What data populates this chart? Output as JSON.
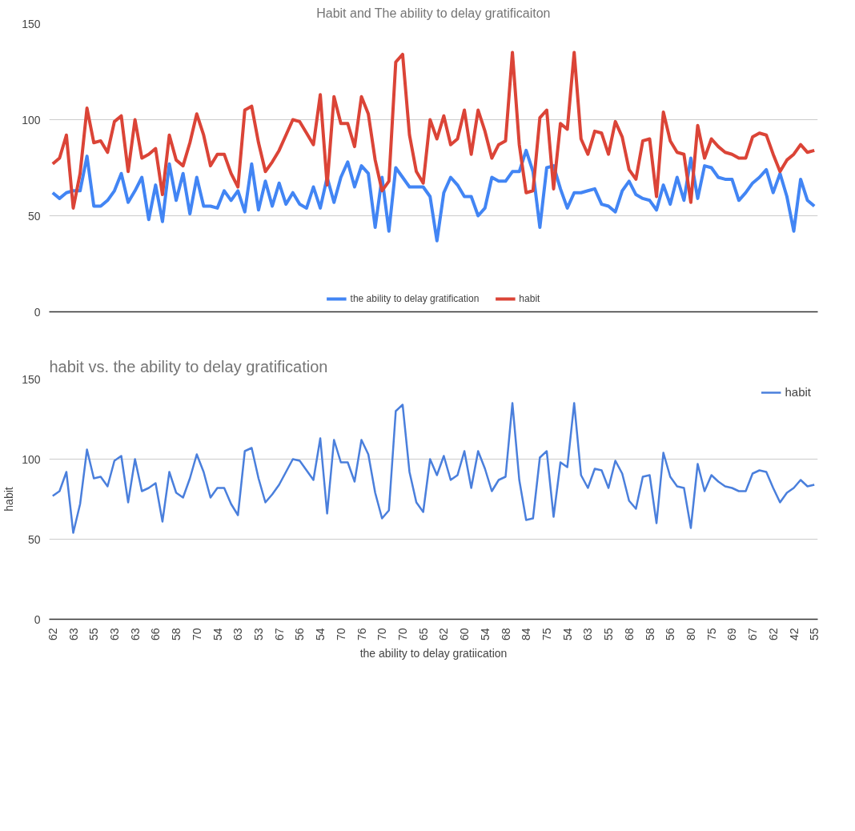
{
  "chart_data": [
    {
      "type": "line",
      "title": "Habit and The ability to delay gratificaiton",
      "categories": [
        null,
        null,
        null,
        null,
        null,
        null,
        null,
        null,
        null,
        null,
        null,
        null,
        null,
        null,
        null,
        null,
        null,
        null,
        null,
        null,
        null,
        null,
        null,
        null,
        null,
        null,
        null,
        null,
        null,
        null,
        null,
        null,
        null,
        null,
        null,
        null,
        null,
        null,
        null,
        null,
        null,
        null,
        null,
        null,
        null,
        null,
        null,
        null,
        null,
        null,
        null,
        null,
        null,
        null,
        null,
        null,
        null,
        null,
        null,
        null,
        null,
        null,
        null,
        null,
        null,
        null,
        null,
        null,
        null,
        null,
        null,
        null,
        null,
        null,
        null,
        null,
        null,
        null,
        null,
        null,
        null,
        null,
        null,
        null,
        null,
        null,
        null,
        null,
        null,
        null,
        null,
        null,
        null,
        null,
        null,
        null,
        null,
        null,
        null,
        null,
        null,
        null,
        null,
        null,
        null,
        null,
        null,
        null,
        null,
        null,
        null,
        null
      ],
      "series": [
        {
          "name": "the ability to delay gratification",
          "color": "#4285f4",
          "values": [
            62,
            59,
            62,
            63,
            63,
            81,
            55,
            55,
            58,
            63,
            72,
            57,
            63,
            70,
            48,
            66,
            47,
            77,
            58,
            72,
            51,
            70,
            55,
            55,
            54,
            63,
            58,
            63,
            52,
            77,
            53,
            68,
            55,
            67,
            56,
            62,
            56,
            54,
            65,
            54,
            70,
            57,
            70,
            78,
            65,
            76,
            72,
            44,
            70,
            42,
            75,
            70,
            65,
            65,
            65,
            60,
            37,
            62,
            70,
            66,
            60,
            60,
            50,
            54,
            70,
            68,
            68,
            73,
            73,
            84,
            73,
            44,
            75,
            76,
            64,
            54,
            62,
            62,
            63,
            64,
            56,
            55,
            52,
            63,
            68,
            61,
            59,
            58,
            53,
            66,
            56,
            70,
            58,
            80,
            59,
            76,
            75,
            70,
            69,
            69,
            58,
            62,
            67,
            70,
            74,
            62,
            72,
            60,
            42,
            69,
            58,
            55
          ]
        },
        {
          "name": "habit",
          "color": "#db4437",
          "values": [
            77,
            80,
            92,
            54,
            72,
            106,
            88,
            89,
            83,
            99,
            102,
            73,
            100,
            80,
            82,
            85,
            61,
            92,
            79,
            76,
            88,
            103,
            92,
            76,
            82,
            82,
            72,
            65,
            105,
            107,
            88,
            73,
            78,
            84,
            92,
            100,
            99,
            93,
            87,
            113,
            66,
            112,
            98,
            98,
            86,
            112,
            103,
            79,
            63,
            68,
            130,
            134,
            92,
            73,
            67,
            100,
            90,
            102,
            87,
            90,
            105,
            82,
            105,
            94,
            80,
            87,
            89,
            135,
            87,
            62,
            63,
            101,
            105,
            64,
            98,
            95,
            135,
            90,
            82,
            94,
            93,
            82,
            99,
            91,
            74,
            69,
            89,
            90,
            60,
            104,
            89,
            83,
            82,
            57,
            97,
            80,
            90,
            86,
            83,
            82,
            80,
            80,
            91,
            93,
            92,
            82,
            73,
            79,
            82,
            87,
            83,
            84
          ]
        }
      ],
      "ylim": [
        0,
        150
      ],
      "yticks": [
        0,
        50,
        100,
        150
      ],
      "grid": "y",
      "legend": "bottom",
      "tick_labels": "y",
      "line_style": "solid"
    },
    {
      "type": "line",
      "title": "habit vs. the ability to delay gratification",
      "xlabel": "the ability to delay gratiication",
      "ylabel": "habit",
      "categories": [
        "62",
        null,
        null,
        "63",
        null,
        null,
        "55",
        null,
        null,
        "63",
        null,
        null,
        "63",
        null,
        null,
        "66",
        null,
        null,
        "58",
        null,
        null,
        "70",
        null,
        null,
        "54",
        null,
        null,
        "63",
        null,
        null,
        "53",
        null,
        null,
        "67",
        null,
        null,
        "56",
        null,
        null,
        "54",
        null,
        null,
        "70",
        null,
        null,
        "76",
        null,
        null,
        "70",
        null,
        null,
        "70",
        null,
        null,
        "65",
        null,
        null,
        "62",
        null,
        null,
        "60",
        null,
        null,
        "54",
        null,
        null,
        "68",
        null,
        null,
        "84",
        null,
        null,
        "75",
        null,
        null,
        "54",
        null,
        null,
        "63",
        null,
        null,
        "55",
        null,
        null,
        "68",
        null,
        null,
        "58",
        null,
        null,
        "56",
        null,
        null,
        "80",
        null,
        null,
        "75",
        null,
        null,
        "69",
        null,
        null,
        "67",
        null,
        null,
        "62",
        null,
        null,
        "42",
        null,
        null,
        "55"
      ],
      "series": [
        {
          "name": "habit",
          "color": "#4a7fdc",
          "values": [
            77,
            80,
            92,
            54,
            72,
            106,
            88,
            89,
            83,
            99,
            102,
            73,
            100,
            80,
            82,
            85,
            61,
            92,
            79,
            76,
            88,
            103,
            92,
            76,
            82,
            82,
            72,
            65,
            105,
            107,
            88,
            73,
            78,
            84,
            92,
            100,
            99,
            93,
            87,
            113,
            66,
            112,
            98,
            98,
            86,
            112,
            103,
            79,
            63,
            68,
            130,
            134,
            92,
            73,
            67,
            100,
            90,
            102,
            87,
            90,
            105,
            82,
            105,
            94,
            80,
            87,
            89,
            135,
            87,
            62,
            63,
            101,
            105,
            64,
            98,
            95,
            135,
            90,
            82,
            94,
            93,
            82,
            99,
            91,
            74,
            69,
            89,
            90,
            60,
            104,
            89,
            83,
            82,
            57,
            97,
            80,
            90,
            86,
            83,
            82,
            80,
            80,
            91,
            93,
            92,
            82,
            73,
            79,
            82,
            87,
            83,
            84
          ]
        }
      ],
      "ylim": [
        0,
        150
      ],
      "yticks": [
        0,
        50,
        100,
        150
      ],
      "grid": "y",
      "legend": "top right",
      "line_style": "solid"
    }
  ]
}
